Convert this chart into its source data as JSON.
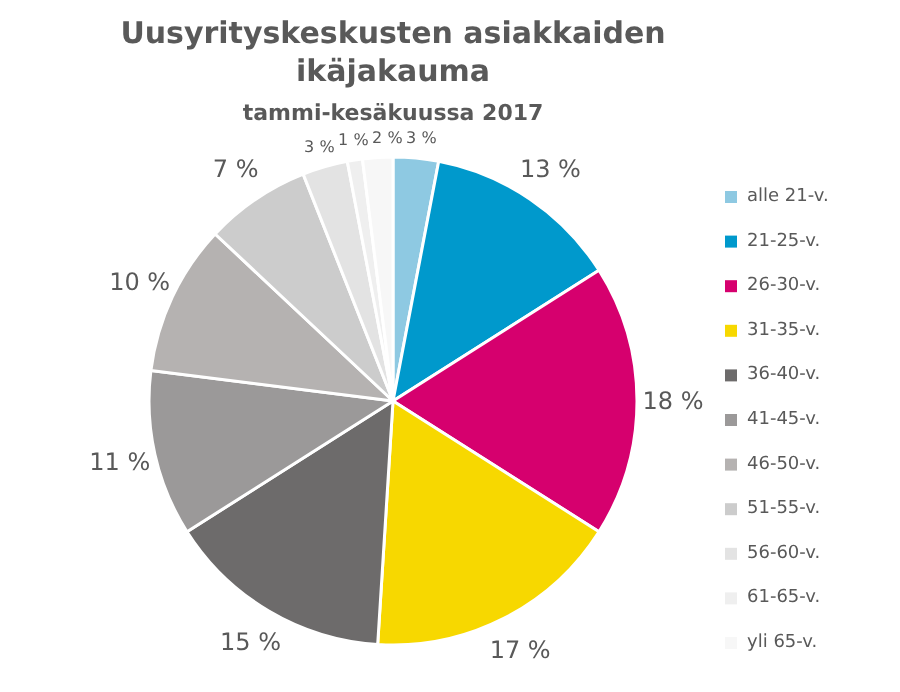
{
  "chart_data": {
    "type": "pie",
    "title": "Uusyrityskeskusten asiakkaiden ikäjakauma",
    "subtitle": "tammi-kesäkuussa 2017",
    "categories": [
      "alle 21-v.",
      "21-25-v.",
      "26-30-v.",
      "31-35-v.",
      "36-40-v.",
      "41-45-v.",
      "46-50-v.",
      "51-55-v.",
      "56-60-v.",
      "61-65-v.",
      "yli 65-v."
    ],
    "values": [
      3,
      13,
      18,
      17,
      15,
      11,
      10,
      7,
      3,
      1,
      2
    ],
    "value_labels": [
      "3 %",
      "13 %",
      "18 %",
      "17 %",
      "15 %",
      "11 %",
      "10 %",
      "7 %",
      "3 %",
      "1 %",
      "2 %"
    ],
    "colors": [
      "#8ec9e2",
      "#0099cc",
      "#d6006e",
      "#f7d800",
      "#6d6b6b",
      "#9b9999",
      "#b5b2b1",
      "#cccccc",
      "#e3e3e3",
      "#efefef",
      "#f7f7f7"
    ],
    "legend": "right"
  }
}
